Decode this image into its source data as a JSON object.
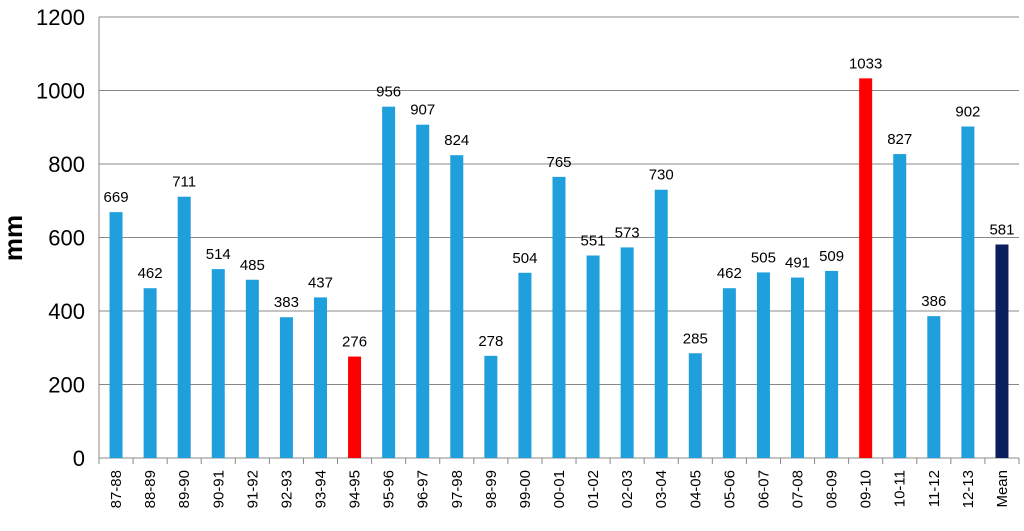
{
  "chart_data": {
    "type": "bar",
    "title": "",
    "xlabel": "",
    "ylabel": "mm",
    "ylim": [
      0,
      1200
    ],
    "yticks": [
      0,
      200,
      400,
      600,
      800,
      1000,
      1200
    ],
    "grid": "horizontal",
    "categories": [
      "87-88",
      "88-89",
      "89-90",
      "90-91",
      "91-92",
      "92-93",
      "93-94",
      "94-95",
      "95-96",
      "96-97",
      "97-98",
      "98-99",
      "99-00",
      "00-01",
      "01-02",
      "02-03",
      "03-04",
      "04-05",
      "05-06",
      "06-07",
      "07-08",
      "08-09",
      "09-10",
      "10-11",
      "11-12",
      "12-13",
      "Mean"
    ],
    "values": [
      669,
      462,
      711,
      514,
      485,
      383,
      437,
      276,
      956,
      907,
      824,
      278,
      504,
      765,
      551,
      573,
      730,
      285,
      462,
      505,
      491,
      509,
      1033,
      827,
      386,
      902,
      581
    ],
    "colors": {
      "default": "#1f9fdc",
      "minimum": "#ff0000",
      "maximum": "#ff0000",
      "mean": "#0b1f5c"
    },
    "highlight": {
      "94-95": "minimum",
      "09-10": "maximum",
      "Mean": "mean"
    }
  }
}
